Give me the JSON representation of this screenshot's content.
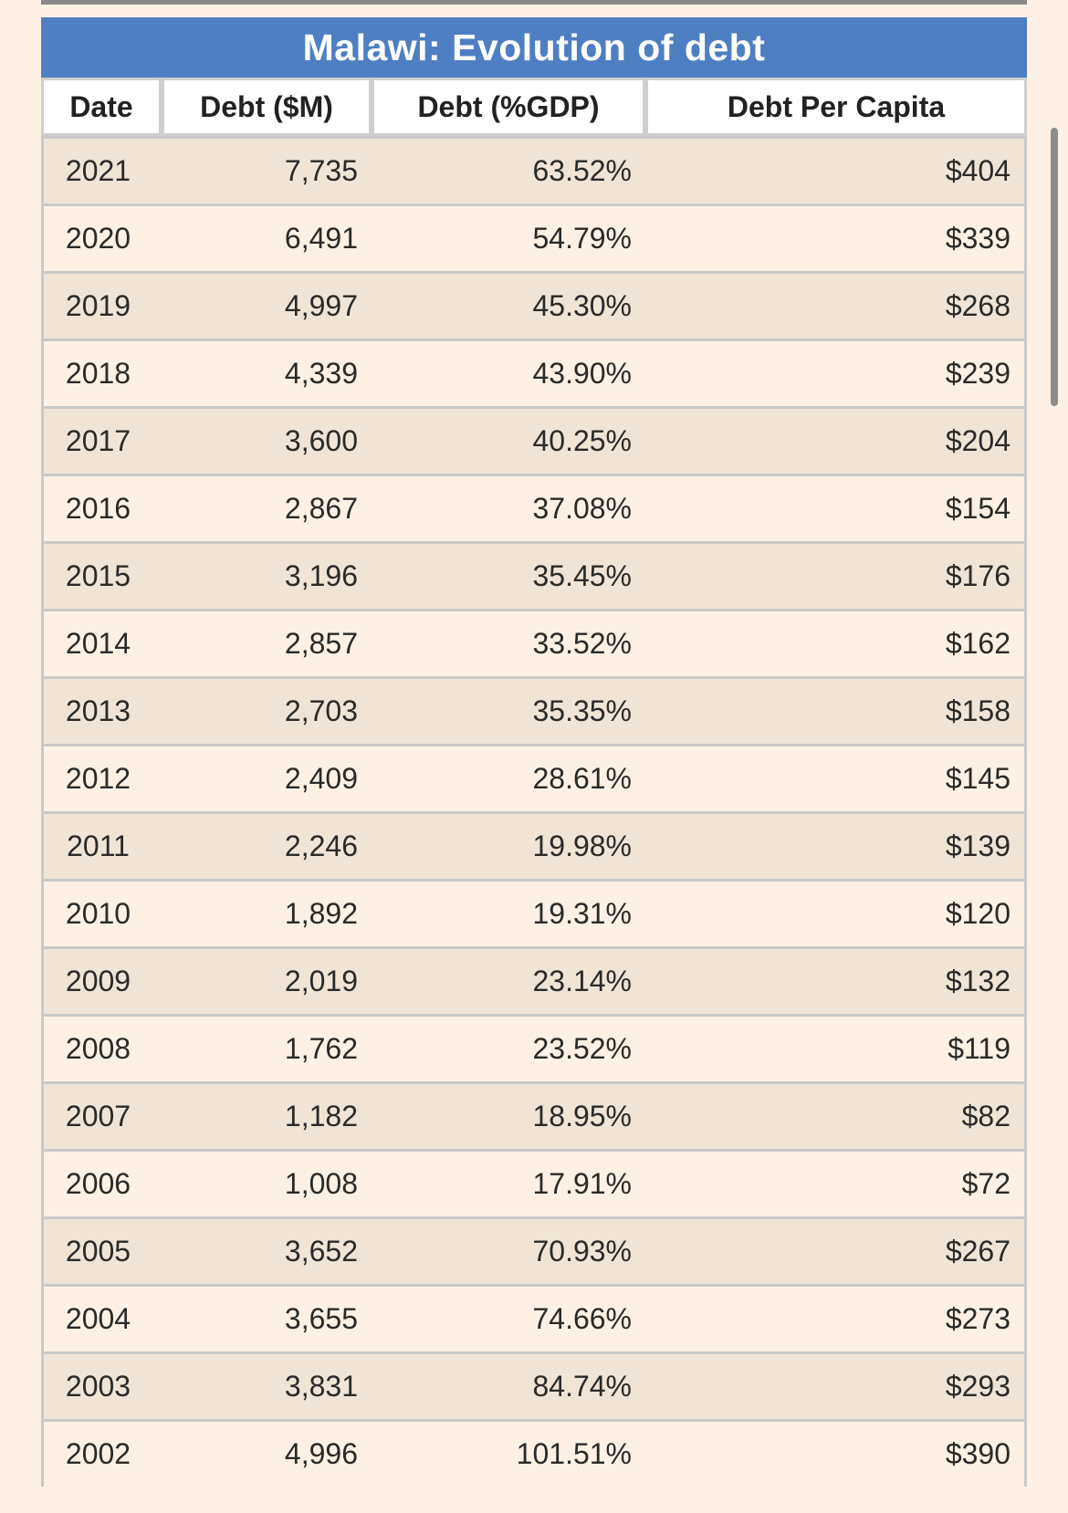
{
  "table": {
    "title": "Malawi: Evolution of debt",
    "headers": [
      "Date",
      "Debt ($M)",
      "Debt (%GDP)",
      "Debt Per Capita"
    ],
    "rows": [
      {
        "date": "2021",
        "debt": "7,735",
        "pct": "63.52%",
        "capita": "$404"
      },
      {
        "date": "2020",
        "debt": "6,491",
        "pct": "54.79%",
        "capita": "$339"
      },
      {
        "date": "2019",
        "debt": "4,997",
        "pct": "45.30%",
        "capita": "$268"
      },
      {
        "date": "2018",
        "debt": "4,339",
        "pct": "43.90%",
        "capita": "$239"
      },
      {
        "date": "2017",
        "debt": "3,600",
        "pct": "40.25%",
        "capita": "$204"
      },
      {
        "date": "2016",
        "debt": "2,867",
        "pct": "37.08%",
        "capita": "$154"
      },
      {
        "date": "2015",
        "debt": "3,196",
        "pct": "35.45%",
        "capita": "$176"
      },
      {
        "date": "2014",
        "debt": "2,857",
        "pct": "33.52%",
        "capita": "$162"
      },
      {
        "date": "2013",
        "debt": "2,703",
        "pct": "35.35%",
        "capita": "$158"
      },
      {
        "date": "2012",
        "debt": "2,409",
        "pct": "28.61%",
        "capita": "$145"
      },
      {
        "date": "2011",
        "debt": "2,246",
        "pct": "19.98%",
        "capita": "$139"
      },
      {
        "date": "2010",
        "debt": "1,892",
        "pct": "19.31%",
        "capita": "$120"
      },
      {
        "date": "2009",
        "debt": "2,019",
        "pct": "23.14%",
        "capita": "$132"
      },
      {
        "date": "2008",
        "debt": "1,762",
        "pct": "23.52%",
        "capita": "$119"
      },
      {
        "date": "2007",
        "debt": "1,182",
        "pct": "18.95%",
        "capita": "$82"
      },
      {
        "date": "2006",
        "debt": "1,008",
        "pct": "17.91%",
        "capita": "$72"
      },
      {
        "date": "2005",
        "debt": "3,652",
        "pct": "70.93%",
        "capita": "$267"
      },
      {
        "date": "2004",
        "debt": "3,655",
        "pct": "74.66%",
        "capita": "$273"
      },
      {
        "date": "2003",
        "debt": "3,831",
        "pct": "84.74%",
        "capita": "$293"
      },
      {
        "date": "2002",
        "debt": "4,996",
        "pct": "101.51%",
        "capita": "$390"
      }
    ]
  },
  "colors": {
    "page_background": "#fcf1e4",
    "title_bar": "#4e7fc3",
    "row_shaded": "#efe4d6"
  }
}
